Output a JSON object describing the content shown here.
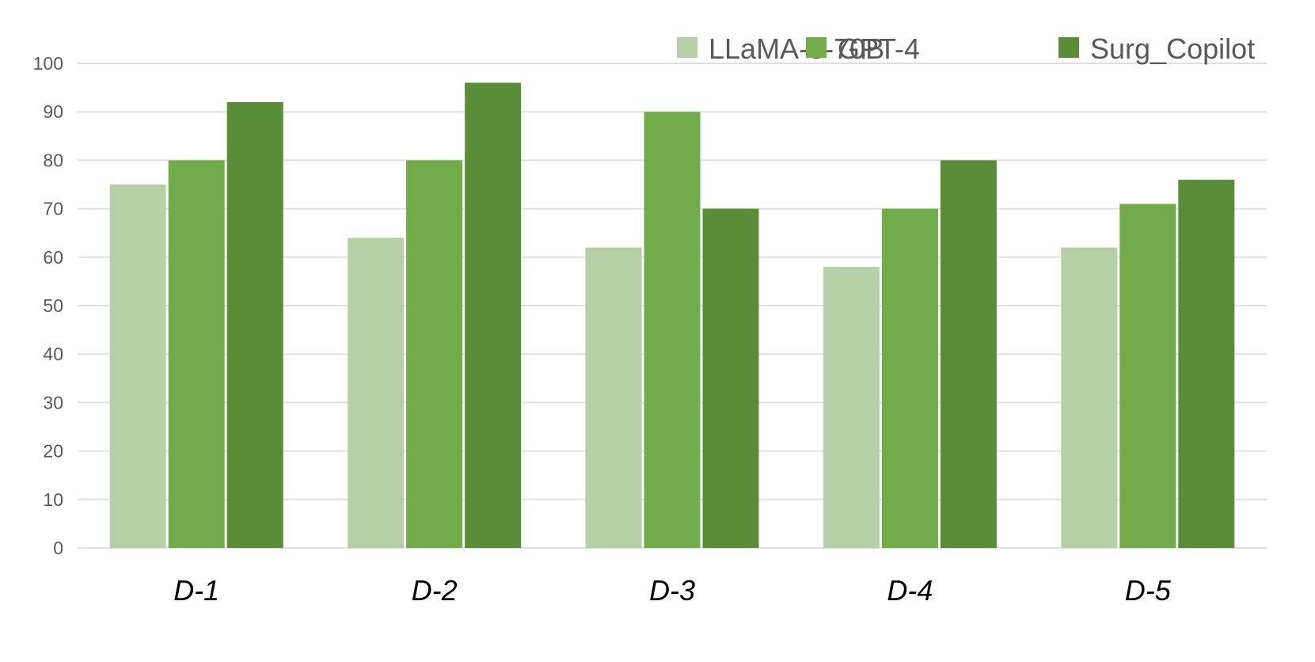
{
  "chart_data": {
    "type": "bar",
    "title": "",
    "xlabel": "",
    "ylabel": "",
    "categories": [
      "D-1",
      "D-2",
      "D-3",
      "D-4",
      "D-5"
    ],
    "series": [
      {
        "name": "LLaMA-3-70B",
        "color": "#b5cfa7",
        "values": [
          75,
          64,
          62,
          58,
          62
        ]
      },
      {
        "name": "GPT-4",
        "color": "#71ab4a",
        "values": [
          80,
          80,
          90,
          70,
          71
        ]
      },
      {
        "name": "Surg_Copilot",
        "color": "#5a8d37",
        "values": [
          92,
          96,
          70,
          80,
          76
        ]
      }
    ],
    "ylim": [
      0,
      100
    ],
    "yticks": [
      0,
      10,
      20,
      30,
      40,
      50,
      60,
      70,
      80,
      90,
      100
    ],
    "grid": true,
    "legend_position": "top-right",
    "colors": {
      "grid": "#e0e0e0",
      "tick_text": "#595959",
      "category_text": "#000000",
      "legend_text": "#595959"
    }
  }
}
